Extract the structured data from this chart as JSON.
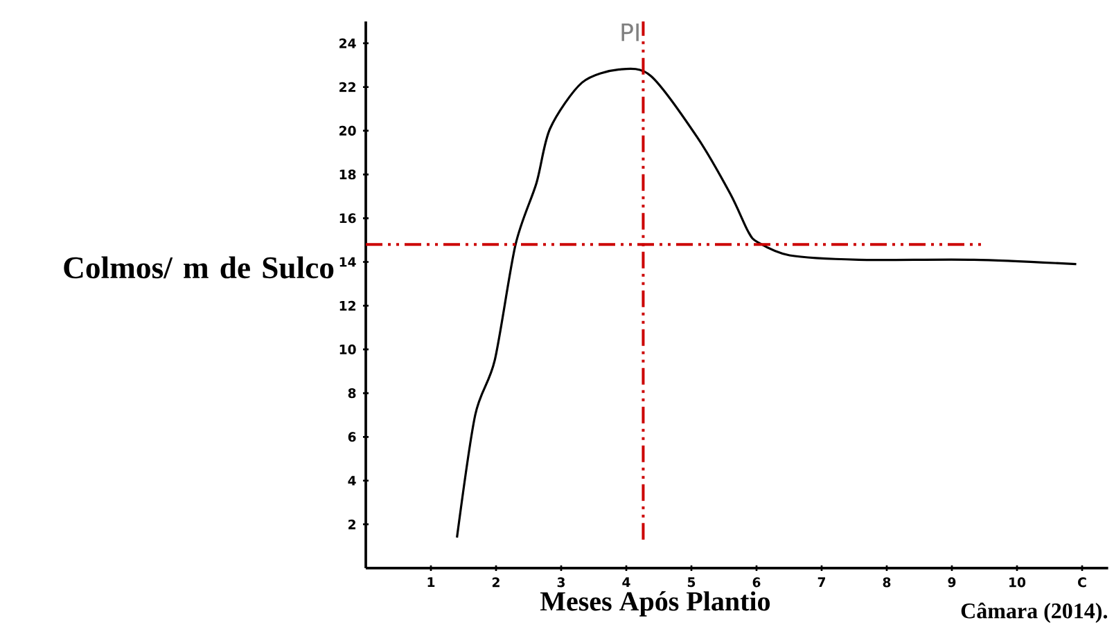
{
  "chart_data": {
    "type": "line",
    "xlabel": "Meses Após Plantio",
    "ylabel": "Colmos/ m de Sulco",
    "annotations": [
      "Câmara (2014)."
    ],
    "x": [
      1.4,
      1.68,
      1.98,
      2.3,
      2.62,
      2.83,
      3.32,
      3.89,
      4.38,
      5.09,
      5.6,
      5.87,
      6.02,
      6.51,
      7.57,
      9.34,
      10.91
    ],
    "series": [
      {
        "color": "#000000",
        "values": [
          1.4,
          7.0,
          9.5,
          14.8,
          17.6,
          20.1,
          22.2,
          22.8,
          22.5,
          19.7,
          17.1,
          15.4,
          14.9,
          14.3,
          14.1,
          14.1,
          13.9
        ]
      }
    ],
    "xlim": [
      0,
      11.4
    ],
    "ylim": [
      0,
      25
    ],
    "xticks": [
      1,
      2,
      3,
      4,
      5,
      6,
      7,
      8,
      9,
      10,
      {
        "value": 11,
        "label": "C"
      }
    ],
    "yticks": [
      2,
      4,
      6,
      8,
      10,
      12,
      14,
      16,
      18,
      20,
      22,
      24
    ],
    "ref_lines": [
      {
        "axis": "y",
        "value": 14.8,
        "color": "#cc0000",
        "line_style": "dashed"
      },
      {
        "axis": "x",
        "value": 4.26,
        "label": "PI",
        "color": "#cc0000",
        "line_style": "dashed"
      }
    ],
    "grid": false,
    "marker": "none",
    "line_style": "solid"
  }
}
